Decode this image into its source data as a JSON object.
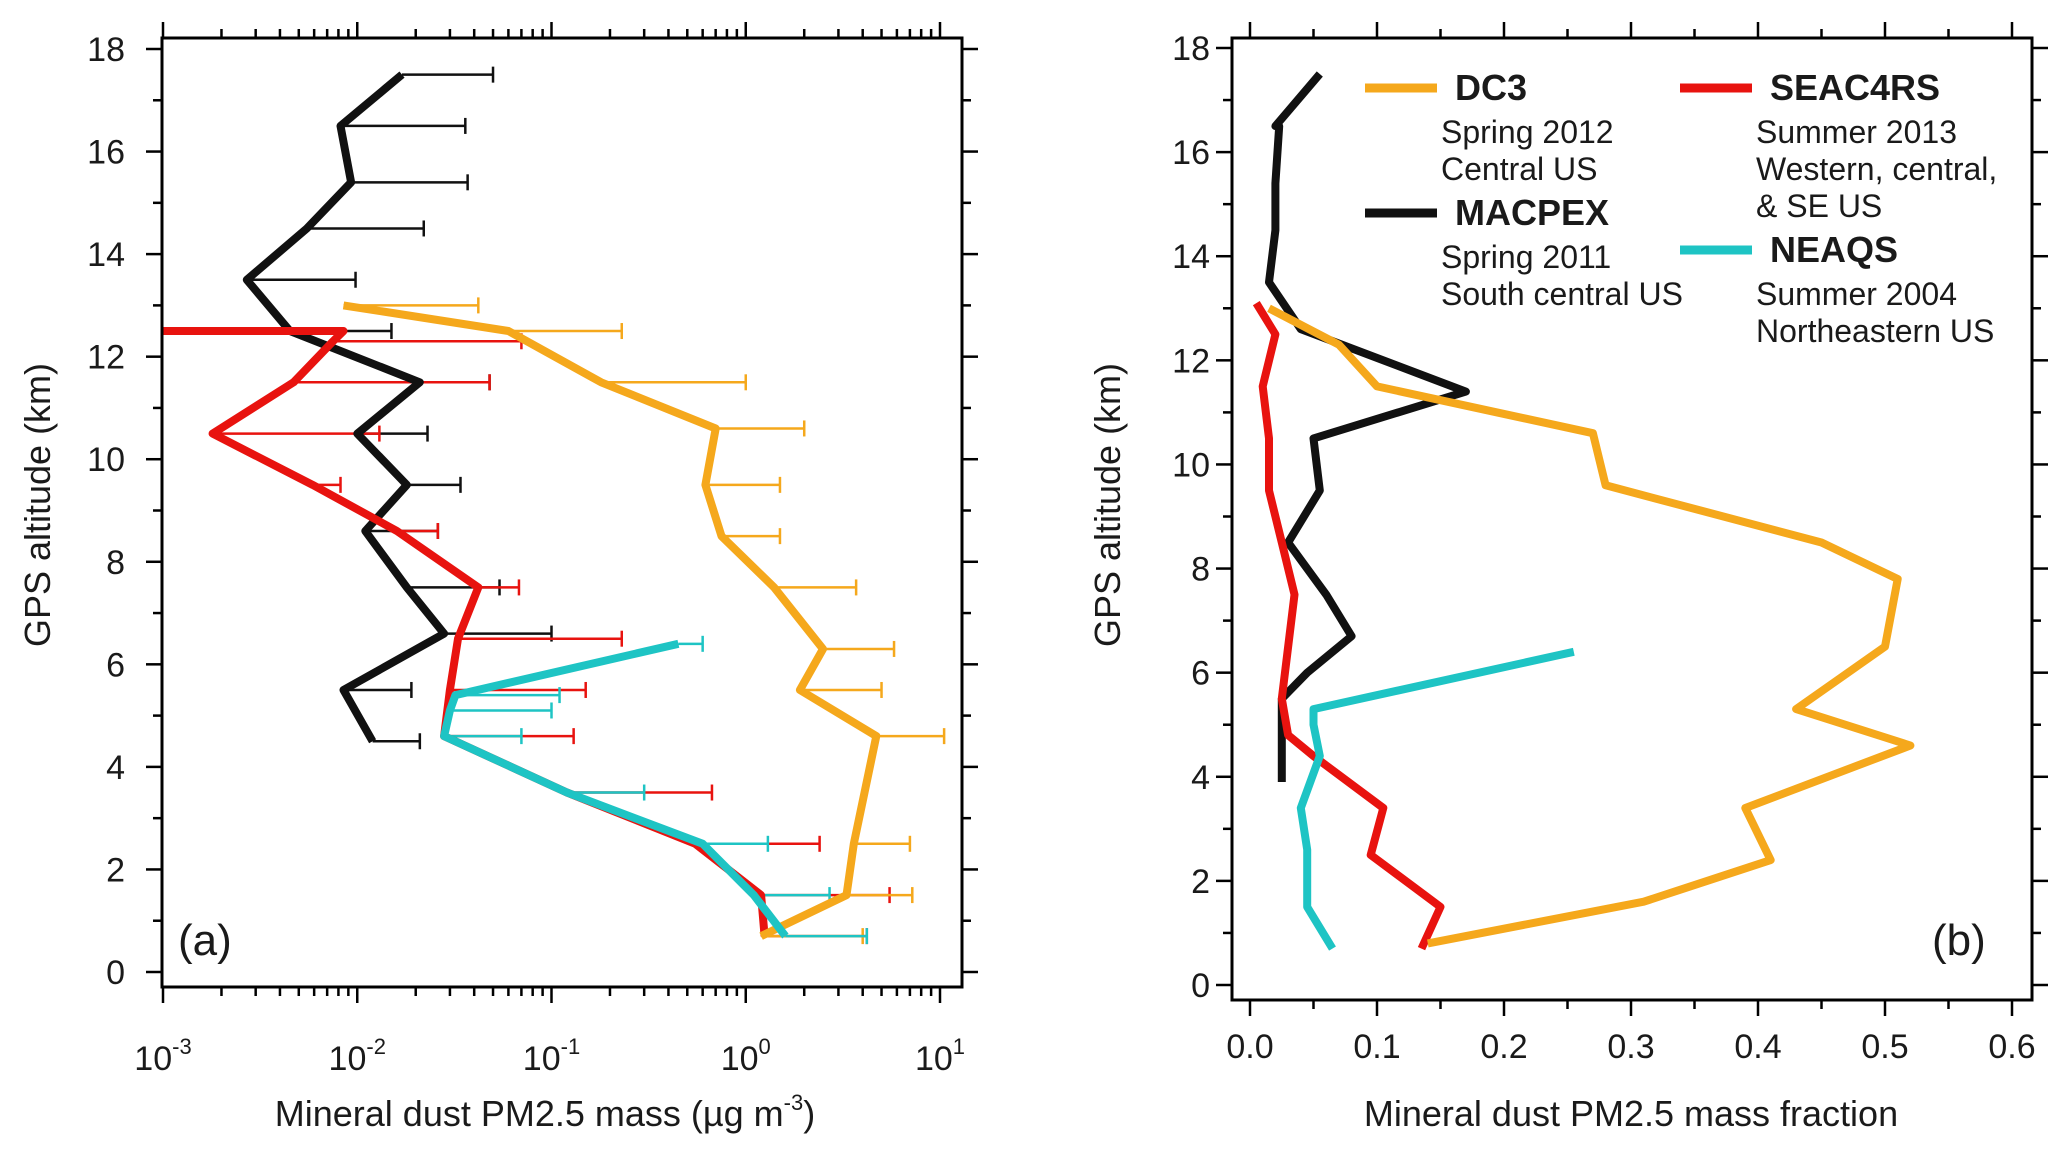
{
  "colors": {
    "DC3": "#f5a81c",
    "SEAC4RS": "#e8130f",
    "MACPEX": "#111111",
    "NEAQS": "#1ec4c4"
  },
  "chart_data": [
    {
      "panel": "(a)",
      "type": "line",
      "xscale": "log",
      "xlim": [
        0.001,
        10
      ],
      "ylim": [
        0,
        18
      ],
      "xlabel_main": "Mineral dust PM2.5 mass (",
      "xlabel_unit_mu": "µ",
      "xlabel_unit": "g m",
      "xlabel_sup": "-3",
      "xlabel_close": ")",
      "ylabel": "GPS altitude (km)",
      "x_ticks": [
        {
          "value": 0.001,
          "base": "10",
          "exp": "-3"
        },
        {
          "value": 0.01,
          "base": "10",
          "exp": "-2"
        },
        {
          "value": 0.1,
          "base": "10",
          "exp": "-1"
        },
        {
          "value": 1,
          "base": "10",
          "exp": "0"
        },
        {
          "value": 10,
          "base": "10",
          "exp": "1"
        }
      ],
      "y_ticks": [
        "0",
        "2",
        "4",
        "6",
        "8",
        "10",
        "12",
        "14",
        "16",
        "18"
      ],
      "series": [
        {
          "name": "MACPEX",
          "x": [
            0.012,
            0.0085,
            0.028,
            0.018,
            0.011,
            0.018,
            0.01,
            0.021,
            0.0045,
            0.0027,
            0.0055,
            0.0093,
            0.0082,
            0.017
          ],
          "y": [
            4.5,
            5.5,
            6.6,
            7.5,
            8.6,
            9.5,
            10.5,
            11.5,
            12.5,
            13.5,
            14.5,
            15.4,
            16.5,
            17.5
          ],
          "err_hi": [
            0.021,
            0.019,
            0.1,
            0.054,
            0.026,
            0.034,
            0.023,
            0.048,
            0.015,
            0.0098,
            0.022,
            0.037,
            0.036,
            0.05
          ]
        },
        {
          "name": "SEAC4RS",
          "x": [
            1.25,
            1.2,
            0.55,
            0.12,
            0.028,
            0.03,
            0.033,
            0.042,
            0.016,
            0.0059,
            0.0018,
            0.0047,
            0.0075,
            0.0085,
            0.001
          ],
          "y": [
            0.7,
            1.5,
            2.5,
            3.5,
            4.6,
            5.5,
            6.5,
            7.5,
            8.6,
            9.5,
            10.5,
            11.5,
            12.3,
            12.5,
            12.5
          ],
          "err_hi": [
            4.2,
            5.5,
            2.4,
            0.67,
            0.13,
            0.15,
            0.23,
            0.068,
            0.026,
            0.0082,
            0.013,
            0.048,
            0.07,
            null,
            null
          ]
        },
        {
          "name": "DC3",
          "x": [
            1.2,
            3.3,
            3.6,
            4.7,
            1.9,
            2.5,
            1.4,
            0.75,
            0.62,
            0.7,
            0.18,
            0.06,
            0.0085
          ],
          "y": [
            0.7,
            1.5,
            2.5,
            4.6,
            5.5,
            6.3,
            7.5,
            8.5,
            9.5,
            10.6,
            11.5,
            12.5,
            13.0
          ],
          "err_hi": [
            4.0,
            7.2,
            7.0,
            10.5,
            5.0,
            5.8,
            3.7,
            1.5,
            1.5,
            2.0,
            1.0,
            0.23,
            0.042
          ]
        },
        {
          "name": "NEAQS",
          "x": [
            1.6,
            1.1,
            0.6,
            0.12,
            0.028,
            0.03,
            0.032,
            0.45
          ],
          "y": [
            0.7,
            1.5,
            2.5,
            3.5,
            4.6,
            5.1,
            5.4,
            6.4
          ],
          "err_hi": [
            4.2,
            2.7,
            1.3,
            0.3,
            0.07,
            0.1,
            0.11,
            0.6
          ]
        }
      ]
    },
    {
      "panel": "(b)",
      "type": "line",
      "xscale": "linear",
      "xlim": [
        0,
        0.6
      ],
      "ylim": [
        0,
        18
      ],
      "xlabel": "Mineral dust PM2.5 mass fraction",
      "ylabel": "GPS altitude (km)",
      "x_ticks": [
        "0.0",
        "0.1",
        "0.2",
        "0.3",
        "0.4",
        "0.5",
        "0.6"
      ],
      "y_ticks": [
        "0",
        "2",
        "4",
        "6",
        "8",
        "10",
        "12",
        "14",
        "16",
        "18"
      ],
      "series": [
        {
          "name": "MACPEX",
          "x": [
            0.025,
            0.025,
            0.045,
            0.08,
            0.06,
            0.03,
            0.055,
            0.05,
            0.17,
            0.04,
            0.015,
            0.02,
            0.02,
            0.023,
            0.02,
            0.055
          ],
          "y": [
            3.9,
            5.5,
            6.0,
            6.7,
            7.5,
            8.5,
            9.5,
            10.5,
            11.4,
            12.6,
            13.5,
            14.5,
            15.4,
            16.5,
            16.5,
            17.5
          ]
        },
        {
          "name": "SEAC4RS",
          "x": [
            0.135,
            0.15,
            0.095,
            0.105,
            0.05,
            0.03,
            0.025,
            0.035,
            0.025,
            0.015,
            0.015,
            0.01,
            0.02,
            0.005
          ],
          "y": [
            0.7,
            1.5,
            2.5,
            3.4,
            4.4,
            4.8,
            5.5,
            7.5,
            8.5,
            9.5,
            10.5,
            11.5,
            12.5,
            13.1
          ]
        },
        {
          "name": "DC3",
          "x": [
            0.14,
            0.31,
            0.41,
            0.39,
            0.52,
            0.43,
            0.5,
            0.51,
            0.45,
            0.28,
            0.27,
            0.1,
            0.07,
            0.015
          ],
          "y": [
            0.8,
            1.6,
            2.4,
            3.4,
            4.6,
            5.3,
            6.5,
            7.8,
            8.5,
            9.6,
            10.6,
            11.5,
            12.3,
            13.0
          ]
        },
        {
          "name": "NEAQS",
          "x": [
            0.065,
            0.045,
            0.045,
            0.04,
            0.055,
            0.05,
            0.05,
            0.255
          ],
          "y": [
            0.7,
            1.5,
            2.6,
            3.4,
            4.4,
            5.0,
            5.3,
            6.4
          ]
        }
      ],
      "legend": {
        "position": "top",
        "entries": [
          {
            "series": "DC3",
            "label": "DC3",
            "lines": [
              "Spring 2012",
              "Central US"
            ]
          },
          {
            "series": "SEAC4RS",
            "label": "SEAC4RS",
            "lines": [
              "Summer 2013",
              "Western, central,",
              "& SE US"
            ]
          },
          {
            "series": "MACPEX",
            "label": "MACPEX",
            "lines": [
              "Spring 2011",
              "South central US"
            ]
          },
          {
            "series": "NEAQS",
            "label": "NEAQS",
            "lines": [
              "Summer 2004",
              "Northeastern US"
            ]
          }
        ]
      }
    }
  ]
}
